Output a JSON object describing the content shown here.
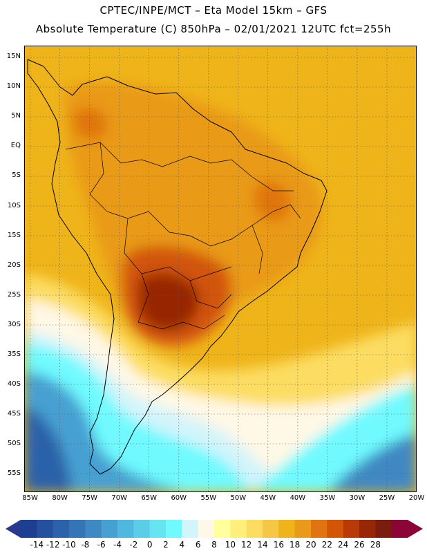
{
  "title": {
    "line1": "CPTEC/INPE/MCT –  Eta Model 15km – GFS",
    "line2": "Absolute Temperature (C) 850hPa – 02/01/2021 12UTC fct=255h"
  },
  "map": {
    "region": "South America",
    "lon_range_deg": [
      -86,
      -20
    ],
    "lat_range_deg": [
      -58,
      17
    ],
    "lat_labels": [
      "15N",
      "10N",
      "5N",
      "EQ",
      "5S",
      "10S",
      "15S",
      "20S",
      "25S",
      "30S",
      "35S",
      "40S",
      "45S",
      "50S",
      "55S"
    ],
    "lat_values": [
      15,
      10,
      5,
      0,
      -5,
      -10,
      -15,
      -20,
      -25,
      -30,
      -35,
      -40,
      -45,
      -50,
      -55
    ],
    "lon_labels": [
      "85W",
      "80W",
      "75W",
      "70W",
      "65W",
      "60W",
      "55W",
      "50W",
      "45W",
      "40W",
      "35W",
      "30W",
      "25W",
      "20W"
    ],
    "lon_values": [
      -85,
      -80,
      -75,
      -70,
      -65,
      -60,
      -55,
      -50,
      -45,
      -40,
      -35,
      -30,
      -25,
      -20
    ]
  },
  "colorbar": {
    "labels": [
      "-14",
      "-12",
      "-10",
      "-8",
      "-6",
      "-4",
      "-2",
      "0",
      "2",
      "4",
      "6",
      "8",
      "10",
      "12",
      "14",
      "16",
      "18",
      "20",
      "22",
      "24",
      "26",
      "28"
    ],
    "colors": [
      "#1d3f91",
      "#25509e",
      "#2c62aa",
      "#3574b6",
      "#3f88c3",
      "#46a0d2",
      "#4fb8de",
      "#5ccde8",
      "#68e3f0",
      "#70faff",
      "#d2f4fb",
      "#fff8e6",
      "#ffff9c",
      "#fff07c",
      "#fcdd62",
      "#f4c844",
      "#efb41a",
      "#e99a18",
      "#e07410",
      "#d25508",
      "#b83a06",
      "#972706",
      "#7a1c0e",
      "#8b0536"
    ],
    "low_arrow_color": "#273a8f",
    "high_arrow_color": "#8b0536"
  }
}
